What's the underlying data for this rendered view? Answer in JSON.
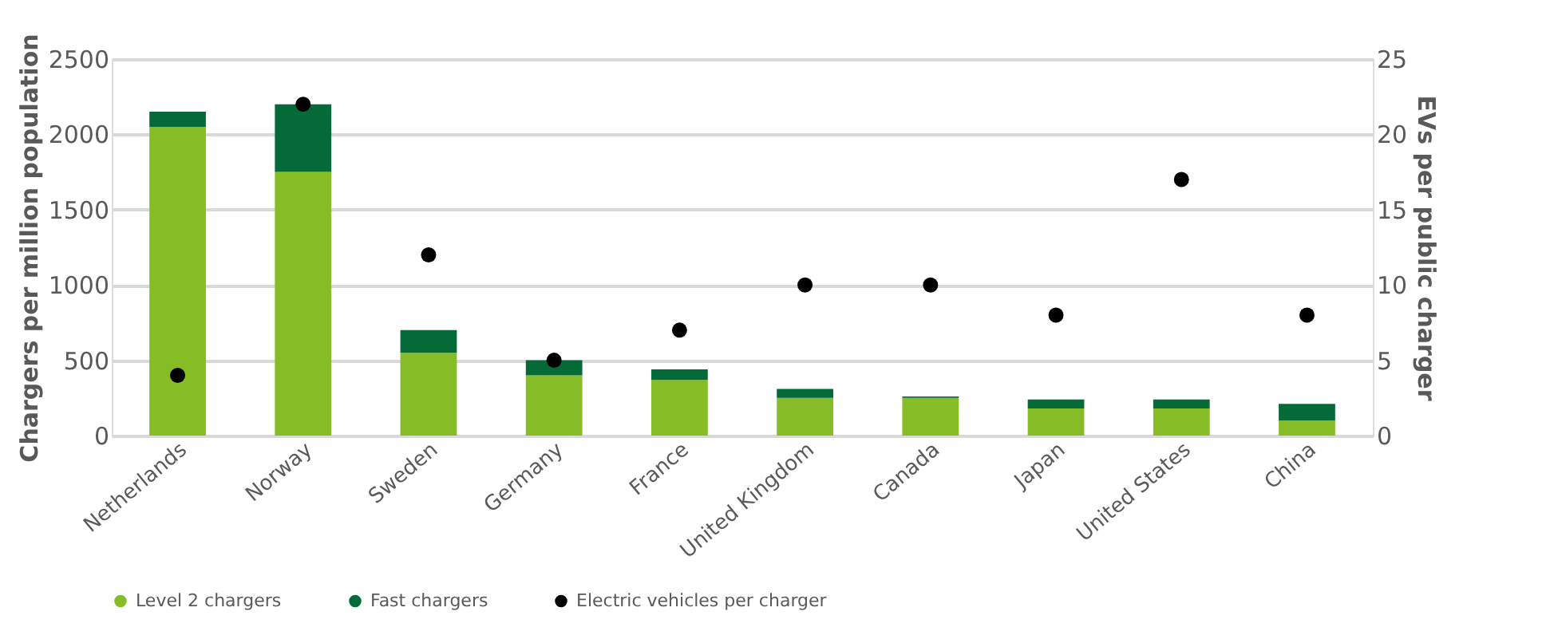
{
  "chart_data": {
    "type": "bar",
    "stacked": true,
    "categories": [
      "Netherlands",
      "Norway",
      "Sweden",
      "Germany",
      "France",
      "United Kingdom",
      "Canada",
      "Japan",
      "United States",
      "China"
    ],
    "ylabel": "Chargers per million population",
    "y2label": "EVs per public charger",
    "ylim": [
      0,
      2500
    ],
    "yticks": [
      0,
      500,
      1000,
      1500,
      2000,
      2500
    ],
    "y2lim": [
      0,
      25
    ],
    "y2ticks": [
      0,
      5,
      10,
      15,
      20,
      25
    ],
    "grid": "y",
    "legend": "bottom",
    "series": [
      {
        "name": "Level 2 chargers",
        "color": "#86bc25",
        "values": [
          2050,
          1750,
          550,
          400,
          370,
          250,
          250,
          180,
          180,
          100
        ]
      },
      {
        "name": "Fast chargers",
        "color": "#046a38",
        "values": [
          100,
          450,
          150,
          100,
          70,
          60,
          10,
          60,
          60,
          110
        ]
      },
      {
        "name": "Electric vehicles per charger",
        "type": "scatter",
        "axis": "y2",
        "color": "#000000",
        "values": [
          4,
          22,
          12,
          5,
          7,
          10,
          10,
          8,
          17,
          8
        ]
      }
    ]
  }
}
